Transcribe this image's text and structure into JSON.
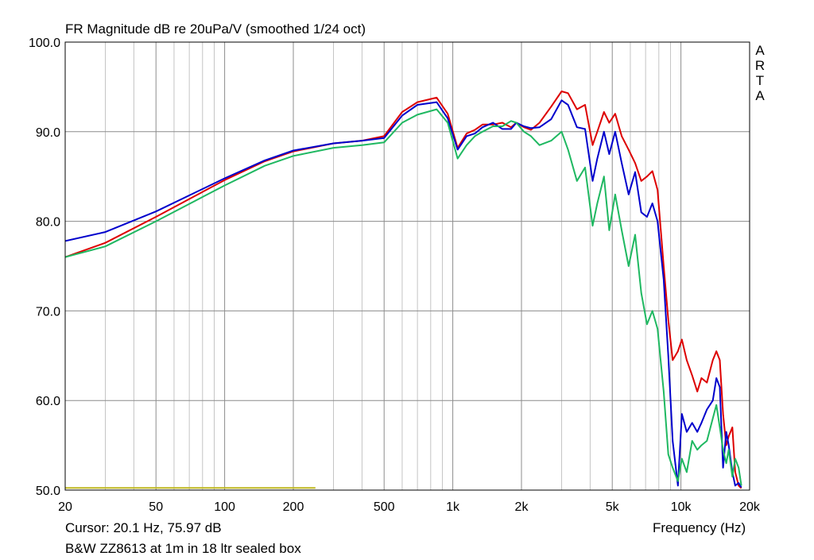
{
  "chart_data": {
    "type": "line",
    "title": "FR Magnitude dB re 20uPa/V (smoothed 1/24 oct)",
    "xlabel": "Frequency (Hz)",
    "ylabel": "",
    "x_scale": "log",
    "xlim": [
      20,
      20000
    ],
    "ylim": [
      50,
      100
    ],
    "grid": true,
    "x_ticks": [
      {
        "value": 20,
        "label": "20"
      },
      {
        "value": 50,
        "label": "50"
      },
      {
        "value": 100,
        "label": "100"
      },
      {
        "value": 200,
        "label": "200"
      },
      {
        "value": 500,
        "label": "500"
      },
      {
        "value": 1000,
        "label": "1k"
      },
      {
        "value": 2000,
        "label": "2k"
      },
      {
        "value": 5000,
        "label": "5k"
      },
      {
        "value": 10000,
        "label": "10k"
      },
      {
        "value": 20000,
        "label": "20k"
      }
    ],
    "y_ticks": [
      {
        "value": 50,
        "label": "50.0"
      },
      {
        "value": 60,
        "label": "60.0"
      },
      {
        "value": 70,
        "label": "70.0"
      },
      {
        "value": 80,
        "label": "80.0"
      },
      {
        "value": 90,
        "label": "90.0"
      },
      {
        "value": 100,
        "label": "100.0"
      }
    ],
    "series": [
      {
        "color": "#dd0000",
        "points": [
          [
            20,
            76.0
          ],
          [
            30,
            77.6
          ],
          [
            50,
            80.5
          ],
          [
            100,
            84.6
          ],
          [
            150,
            86.7
          ],
          [
            200,
            87.8
          ],
          [
            300,
            88.7
          ],
          [
            400,
            89.0
          ],
          [
            500,
            89.5
          ],
          [
            600,
            92.2
          ],
          [
            700,
            93.3
          ],
          [
            850,
            93.8
          ],
          [
            950,
            92.0
          ],
          [
            1050,
            88.2
          ],
          [
            1150,
            89.8
          ],
          [
            1250,
            90.2
          ],
          [
            1350,
            90.8
          ],
          [
            1500,
            90.8
          ],
          [
            1650,
            91.0
          ],
          [
            1800,
            90.5
          ],
          [
            1900,
            91.0
          ],
          [
            2050,
            90.5
          ],
          [
            2200,
            90.2
          ],
          [
            2400,
            91.0
          ],
          [
            2700,
            92.8
          ],
          [
            3000,
            94.5
          ],
          [
            3200,
            94.3
          ],
          [
            3500,
            92.5
          ],
          [
            3800,
            93.0
          ],
          [
            4100,
            88.5
          ],
          [
            4300,
            90.0
          ],
          [
            4600,
            92.2
          ],
          [
            4850,
            91.0
          ],
          [
            5150,
            92.0
          ],
          [
            5500,
            89.5
          ],
          [
            5900,
            88.0
          ],
          [
            6300,
            86.5
          ],
          [
            6700,
            84.5
          ],
          [
            7100,
            85.0
          ],
          [
            7500,
            85.6
          ],
          [
            7900,
            83.5
          ],
          [
            8400,
            75.0
          ],
          [
            8800,
            69.0
          ],
          [
            9200,
            64.5
          ],
          [
            9700,
            65.5
          ],
          [
            10100,
            66.8
          ],
          [
            10600,
            64.5
          ],
          [
            11200,
            62.8
          ],
          [
            11800,
            61.0
          ],
          [
            12300,
            62.5
          ],
          [
            13000,
            62.0
          ],
          [
            13800,
            64.5
          ],
          [
            14300,
            65.5
          ],
          [
            14800,
            64.5
          ],
          [
            15300,
            58.5
          ],
          [
            15800,
            55.0
          ],
          [
            16200,
            56.0
          ],
          [
            16800,
            57.0
          ],
          [
            17300,
            52.0
          ],
          [
            17900,
            50.5
          ],
          [
            18400,
            50.2
          ]
        ]
      },
      {
        "color": "#0000cc",
        "points": [
          [
            20,
            77.8
          ],
          [
            30,
            78.8
          ],
          [
            50,
            81.1
          ],
          [
            100,
            84.8
          ],
          [
            150,
            86.8
          ],
          [
            200,
            87.9
          ],
          [
            300,
            88.7
          ],
          [
            400,
            89.0
          ],
          [
            500,
            89.3
          ],
          [
            600,
            91.8
          ],
          [
            700,
            93.0
          ],
          [
            850,
            93.3
          ],
          [
            950,
            91.5
          ],
          [
            1050,
            88.0
          ],
          [
            1150,
            89.5
          ],
          [
            1250,
            89.8
          ],
          [
            1350,
            90.5
          ],
          [
            1500,
            91.0
          ],
          [
            1650,
            90.3
          ],
          [
            1800,
            90.3
          ],
          [
            1900,
            91.0
          ],
          [
            2050,
            90.6
          ],
          [
            2200,
            90.4
          ],
          [
            2400,
            90.5
          ],
          [
            2700,
            91.4
          ],
          [
            3000,
            93.5
          ],
          [
            3200,
            93.0
          ],
          [
            3500,
            90.5
          ],
          [
            3800,
            90.3
          ],
          [
            4100,
            84.5
          ],
          [
            4300,
            87.0
          ],
          [
            4600,
            90.0
          ],
          [
            4850,
            87.5
          ],
          [
            5150,
            90.0
          ],
          [
            5500,
            86.5
          ],
          [
            5900,
            83.0
          ],
          [
            6300,
            85.5
          ],
          [
            6700,
            81.0
          ],
          [
            7100,
            80.5
          ],
          [
            7500,
            82.0
          ],
          [
            7900,
            80.0
          ],
          [
            8400,
            73.5
          ],
          [
            8800,
            65.0
          ],
          [
            9200,
            55.5
          ],
          [
            9700,
            50.5
          ],
          [
            10100,
            58.5
          ],
          [
            10600,
            56.5
          ],
          [
            11200,
            57.5
          ],
          [
            11800,
            56.5
          ],
          [
            12300,
            57.5
          ],
          [
            13000,
            59.0
          ],
          [
            13800,
            60.0
          ],
          [
            14300,
            62.5
          ],
          [
            14800,
            61.5
          ],
          [
            15300,
            52.5
          ],
          [
            15800,
            56.5
          ],
          [
            16200,
            55.0
          ],
          [
            16800,
            52.0
          ],
          [
            17300,
            50.5
          ],
          [
            17900,
            50.8
          ],
          [
            18400,
            50.3
          ]
        ]
      },
      {
        "color": "#1fb861",
        "points": [
          [
            20,
            76.0
          ],
          [
            30,
            77.2
          ],
          [
            50,
            80.0
          ],
          [
            100,
            84.0
          ],
          [
            150,
            86.2
          ],
          [
            200,
            87.3
          ],
          [
            300,
            88.2
          ],
          [
            400,
            88.5
          ],
          [
            500,
            88.8
          ],
          [
            600,
            91.0
          ],
          [
            700,
            91.9
          ],
          [
            850,
            92.5
          ],
          [
            950,
            91.0
          ],
          [
            1050,
            87.0
          ],
          [
            1150,
            88.5
          ],
          [
            1250,
            89.5
          ],
          [
            1350,
            90.0
          ],
          [
            1500,
            90.6
          ],
          [
            1650,
            90.6
          ],
          [
            1800,
            91.2
          ],
          [
            1900,
            91.0
          ],
          [
            2050,
            90.0
          ],
          [
            2200,
            89.5
          ],
          [
            2400,
            88.5
          ],
          [
            2700,
            89.0
          ],
          [
            3000,
            90.0
          ],
          [
            3200,
            88.0
          ],
          [
            3500,
            84.5
          ],
          [
            3800,
            86.0
          ],
          [
            4100,
            79.5
          ],
          [
            4300,
            82.0
          ],
          [
            4600,
            85.0
          ],
          [
            4850,
            79.0
          ],
          [
            5150,
            83.0
          ],
          [
            5500,
            79.0
          ],
          [
            5900,
            75.0
          ],
          [
            6300,
            78.5
          ],
          [
            6700,
            72.0
          ],
          [
            7100,
            68.5
          ],
          [
            7500,
            70.0
          ],
          [
            7900,
            68.0
          ],
          [
            8400,
            61.0
          ],
          [
            8800,
            54.0
          ],
          [
            9200,
            52.5
          ],
          [
            9700,
            51.0
          ],
          [
            10100,
            53.5
          ],
          [
            10600,
            52.0
          ],
          [
            11200,
            55.5
          ],
          [
            11800,
            54.5
          ],
          [
            12300,
            55.0
          ],
          [
            13000,
            55.5
          ],
          [
            13800,
            58.0
          ],
          [
            14300,
            59.5
          ],
          [
            14800,
            57.0
          ],
          [
            15300,
            54.5
          ],
          [
            15800,
            53.0
          ],
          [
            16200,
            54.5
          ],
          [
            16800,
            51.5
          ],
          [
            17300,
            53.5
          ],
          [
            17900,
            52.5
          ],
          [
            18400,
            50.5
          ]
        ]
      },
      {
        "color": "#c0b820",
        "points": [
          [
            20,
            50.25
          ],
          [
            250,
            50.25
          ]
        ]
      }
    ]
  },
  "labels": {
    "brand": [
      "A",
      "R",
      "T",
      "A"
    ],
    "cursor": "Cursor: 20.1 Hz, 75.97 dB",
    "caption": "B&W ZZ8613 at 1m in 18 ltr sealed box"
  }
}
